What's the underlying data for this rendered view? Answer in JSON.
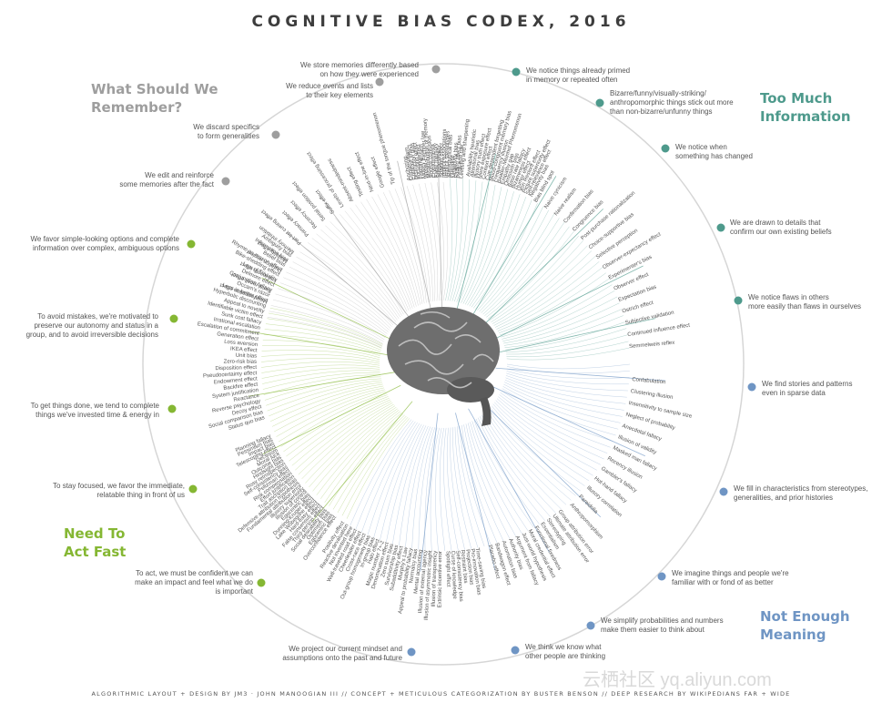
{
  "title": "COGNITIVE BIAS CODEX, 2016",
  "quadrants": {
    "remember": [
      "What Should We",
      "Remember?"
    ],
    "info": [
      "Too Much",
      "Information"
    ],
    "meaning": [
      "Not Enough",
      "Meaning"
    ],
    "fast": [
      "Need To",
      "Act Fast"
    ]
  },
  "colors": {
    "remember": "#9e9e9e",
    "info": "#4e9a8c",
    "meaning": "#6f95c4",
    "fast": "#85b733"
  },
  "categories": [
    {
      "text": [
        "We store memories differently based",
        "on how they were experienced"
      ],
      "quad": "remember"
    },
    {
      "text": [
        "We reduce events and lists",
        "to their key elements"
      ],
      "quad": "remember"
    },
    {
      "text": [
        "We discard specifics",
        "to form generalities"
      ],
      "quad": "remember"
    },
    {
      "text": [
        "We edit and reinforce",
        "some memories after the fact"
      ],
      "quad": "remember"
    },
    {
      "text": [
        "We notice things already primed",
        "in memory or repeated often"
      ],
      "quad": "info"
    },
    {
      "text": [
        "Bizarre/funny/visually-striking/",
        "anthropomorphic things stick out more",
        "than non-bizarre/unfunny things"
      ],
      "quad": "info"
    },
    {
      "text": [
        "We notice when",
        "something has changed"
      ],
      "quad": "info"
    },
    {
      "text": [
        "We are drawn to details that",
        "confirm our own existing beliefs"
      ],
      "quad": "info"
    },
    {
      "text": [
        "We notice flaws in others",
        "more easily than flaws in ourselves"
      ],
      "quad": "info"
    },
    {
      "text": [
        "We find stories and patterns",
        "even in sparse data"
      ],
      "quad": "meaning"
    },
    {
      "text": [
        "We fill in characteristics from stereotypes,",
        "generalities, and prior histories"
      ],
      "quad": "meaning"
    },
    {
      "text": [
        "We imagine things and people we're",
        "familiar with or fond of as better"
      ],
      "quad": "meaning"
    },
    {
      "text": [
        "We simplify probabilities and numbers",
        "make them easier to think about"
      ],
      "quad": "meaning"
    },
    {
      "text": [
        "We think we know what",
        "other people are thinking"
      ],
      "quad": "meaning"
    },
    {
      "text": [
        "We project our current mindset and",
        "assumptions onto the past and future"
      ],
      "quad": "meaning"
    },
    {
      "text": [
        "We favor simple-looking options and complete",
        "information over complex, ambiguous options"
      ],
      "quad": "fast"
    },
    {
      "text": [
        "To avoid mistakes, we're motivated to",
        "preserve our autonomy and status in a",
        "group, and to avoid irreversible decisions"
      ],
      "quad": "fast"
    },
    {
      "text": [
        "To get things done, we tend to complete",
        "things we've invested time & energy in"
      ],
      "quad": "fast"
    },
    {
      "text": [
        "To stay focused, we favor the immediate,",
        "relatable thing in front of us"
      ],
      "quad": "fast"
    },
    {
      "text": [
        "To act, we must be confident we can",
        "make an impact and feel what we do",
        "is important"
      ],
      "quad": "fast"
    }
  ],
  "biases": {
    "right": [
      "Confabulation",
      "Clustering illusion",
      "Insensitivity to sample size",
      "Neglect of probability",
      "Anecdotal fallacy",
      "Illusion of validity",
      "Masked man fallacy",
      "Recency illusion",
      "Gambler's fallacy",
      "Hot-hand fallacy",
      "Illusory correlation",
      "Pareidolia",
      "Anthropomorphism",
      "Group attribution error",
      "Ultimate attribution error",
      "Stereotyping",
      "Essentialism",
      "Functional fixedness",
      "Moral credential effect",
      "Just-world hypothesis",
      "Argument from fallacy",
      "Authority bias",
      "Automation bias",
      "Bandwagon effect",
      "Placebo effect",
      "Bias blind spot",
      "Naive cynicism",
      "Naive realism",
      "Confirmation bias",
      "Congruence bias",
      "Post-purchase rationalization",
      "Choice-supportive bias",
      "Selective perception",
      "Observer-expectancy effect",
      "Experimenter's bias",
      "Observer effect",
      "Expectation bias",
      "Ostrich effect",
      "Subjective validation",
      "Continued influence effect",
      "Semmelweis reflex"
    ],
    "left": [
      "Status quo bias",
      "Social comparison bias",
      "Decoy effect",
      "Reverse psychology",
      "Reactance",
      "System justification",
      "Backfire effect",
      "Endowment effect",
      "Pseudocertainty effect",
      "Disposition effect",
      "Zero-risk bias",
      "Unit bias",
      "IKEA effect",
      "Loss aversion",
      "Generation effect",
      "Escalation of commitment",
      "Irrational escalation",
      "Sunk cost fallacy",
      "Identifiable victim effect",
      "Appeal to novelty",
      "Hyperbolic discounting",
      "Less-is-better effect",
      "Occam's razor",
      "Conjunction fallacy",
      "Delmore effect",
      "Law of Triviality",
      "Bike-shedding effect",
      "Rhyme as reason effect",
      "Belief bias",
      "Information bias",
      "Ambiguity bias"
    ],
    "top": [
      "Availability heuristic",
      "Attentional bias",
      "Illusory truth effect",
      "Mere exposure effect",
      "Context effect",
      "Cue-dependent forgetting",
      "Mood-congruent memory bias",
      "Frequency illusion",
      "Baader-Meinhof Phenomenon",
      "Empathy gap",
      "Omission bias",
      "Base rate fallacy",
      "Bizarreness effect",
      "Humor effect",
      "Von Restorff effect",
      "Picture superiority effect",
      "Self-relevance effect",
      "Negativity bias",
      "Anchoring",
      "Conservatism",
      "Contrast effect",
      "Distinction bias",
      "Focusing effect",
      "Framing effect",
      "Money illusion",
      "Weber-Fechner law",
      "Misattribution of memory",
      "Source confusion",
      "Cryptomnesia",
      "False memory",
      "Suggestibility",
      "Spacing effect",
      "Implicit associations",
      "Implicit stereotypes",
      "Stereotypical bias",
      "Prejudice",
      "Negativity bias",
      "Fading affect bias",
      "Peak-end rule",
      "Leveling and sharpening",
      "Misinformation effect",
      "Serial recall effect",
      "List-length effect",
      "Duration neglect",
      "Modality effect",
      "Memory inhibition",
      "Part-list cueing effect",
      "Primacy effect",
      "Recency effect",
      "Serial position effect",
      "Suffix effect",
      "Levels of processing effect",
      "Absent-mindedness",
      "Testing effect",
      "Next-in-line effect",
      "Google effect",
      "Tip of the tongue phenomenon"
    ],
    "bottom": [
      "Overconfidence effect",
      "Egocentric bias",
      "Optimism bias",
      "Social desirability bias",
      "Third-person effect",
      "False consensus effect",
      "Hard-easy effect",
      "Lake Wobegone effect",
      "Dunning-Kruger effect",
      "Egocentric bias",
      "Illusion of control",
      "Illusory superiority",
      "Fundamental attribution error",
      "Defensive attribution hypothesis",
      "Trait ascription bias",
      "Effort justification",
      "Risk compensation",
      "Peltzman effect",
      "Self-consistency bias",
      "Rosy retrospection",
      "Hindsight bias",
      "Outcome bias",
      "Moral luck",
      "Declinism",
      "Telescoping effect",
      "Impact bias",
      "Pessimism bias",
      "Planning fallacy",
      "Time-saving bias",
      "Pro-innovation bias",
      "Projection bias",
      "Restraint bias",
      "Self-consistency bias",
      "Curse of knowledge",
      "Spotlight effect",
      "Extrinsic incentive error",
      "Illusion of transparency",
      "Illusion of asymmetric insight",
      "Illusion of external agency",
      "Mental accounting",
      "Normalcy bias",
      "Appeal to probability fallacy",
      "Murphy's Law",
      "Subadditivity effect",
      "Survivorship bias",
      "Zero sum bias",
      "Denomination effect",
      "Magic number 7+-2",
      "Halo effect",
      "In-group bias",
      "Out-group homogeneity bias",
      "Cross-race effect",
      "Cheerleader effect",
      "Well-traveled road effect",
      "Not invented here",
      "Reactive devaluation",
      "Positivity effect"
    ]
  },
  "footer": "ALGORITHMIC LAYOUT + DESIGN BY JM3 · JOHN MANOOGIAN III // CONCEPT + METICULOUS CATEGORIZATION BY BUSTER BENSON // DEEP RESEARCH BY WIKIPEDIANS FAR + WIDE",
  "watermark": "云栖社区 yq.aliyun.com"
}
